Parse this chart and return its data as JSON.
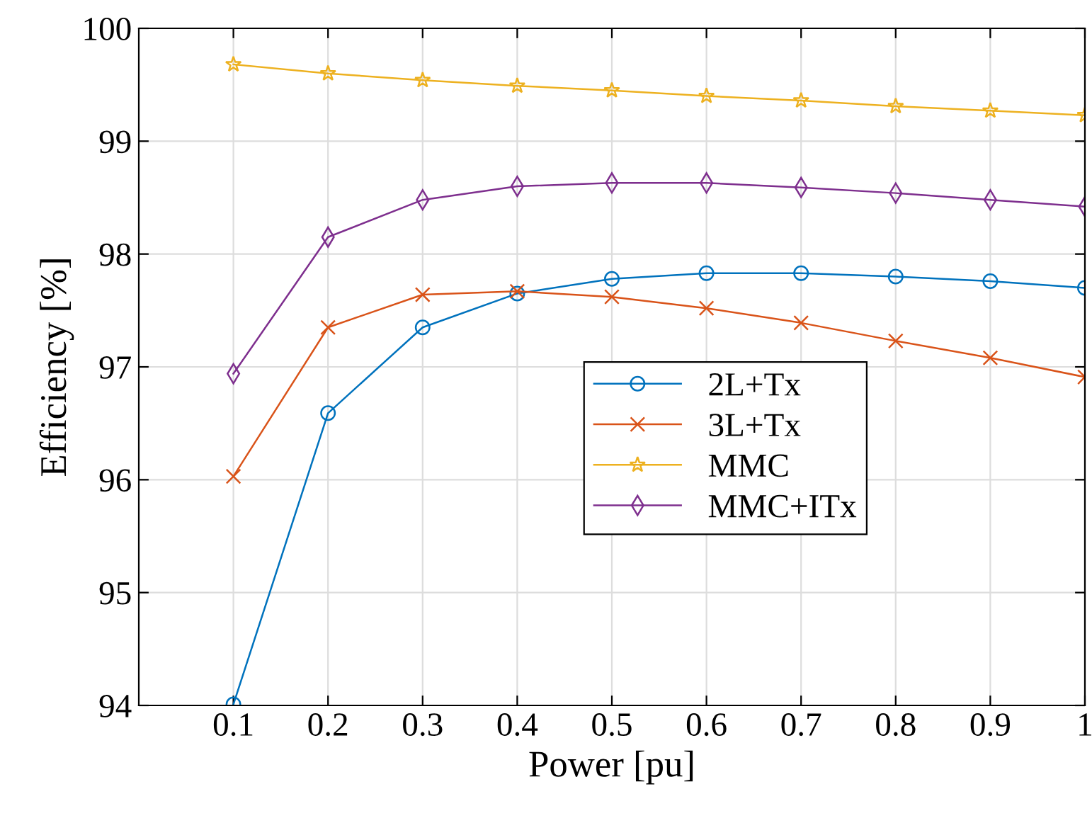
{
  "chart_data": {
    "type": "line",
    "xlabel": "Power [pu]",
    "ylabel": "Efficiency [%]",
    "x": [
      0.1,
      0.2,
      0.3,
      0.4,
      0.5,
      0.6,
      0.7,
      0.8,
      0.9,
      1
    ],
    "series": [
      {
        "name": "2L+Tx",
        "color": "#0072bd",
        "marker": "circle",
        "values": [
          94.01,
          96.59,
          97.35,
          97.65,
          97.78,
          97.83,
          97.83,
          97.8,
          97.76,
          97.7
        ]
      },
      {
        "name": "3L+Tx",
        "color": "#d95319",
        "marker": "cross",
        "values": [
          96.03,
          97.35,
          97.64,
          97.67,
          97.62,
          97.52,
          97.39,
          97.23,
          97.08,
          96.91
        ]
      },
      {
        "name": "MMC",
        "color": "#edb120",
        "marker": "star",
        "values": [
          99.68,
          99.6,
          99.54,
          99.49,
          99.45,
          99.4,
          99.36,
          99.31,
          99.27,
          99.23
        ]
      },
      {
        "name": "MMC+ITx",
        "color": "#7e2f8e",
        "marker": "diamond",
        "values": [
          96.94,
          98.15,
          98.48,
          98.6,
          98.63,
          98.63,
          98.59,
          98.54,
          98.48,
          98.42
        ]
      }
    ],
    "xlim": [
      0,
      1
    ],
    "xticks": [
      0.1,
      0.2,
      0.3,
      0.4,
      0.5,
      0.6,
      0.7,
      0.8,
      0.9,
      {
        "value": 1,
        "label": "1"
      }
    ],
    "ylim": [
      94,
      100
    ],
    "yticks": [
      94,
      95,
      96,
      97,
      98,
      99,
      100
    ],
    "grid": true,
    "legend": "center",
    "line_style": "solid"
  }
}
